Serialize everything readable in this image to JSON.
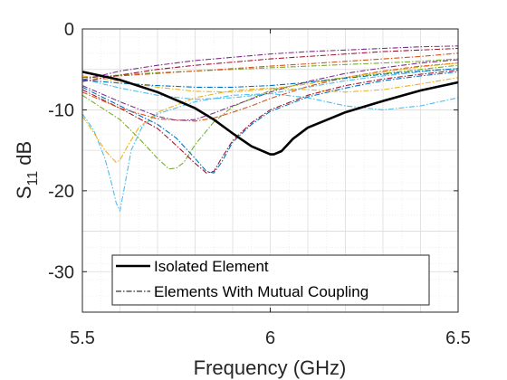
{
  "chart_data": {
    "type": "line",
    "title": "",
    "xlabel": "Frequency (GHz)",
    "ylabel_main": "S",
    "ylabel_sub": "11",
    "ylabel_unit": " dB",
    "xlim": [
      5.5,
      6.5
    ],
    "ylim": [
      -35,
      0
    ],
    "xticks": [
      "5.5",
      "6",
      "6.5"
    ],
    "yticks": [
      "0",
      "-10",
      "-20",
      "-30"
    ],
    "grid": true,
    "minor_grid": true,
    "legend_position": "bottom-right",
    "legend": [
      "Isolated Element",
      "Elements With Mutual Coupling"
    ],
    "series": [
      {
        "name": "Isolated Element",
        "color": "#000000",
        "style": "solid",
        "x": [
          5.5,
          5.6,
          5.7,
          5.8,
          5.85,
          5.9,
          5.95,
          6.0,
          6.01,
          6.03,
          6.06,
          6.1,
          6.2,
          6.3,
          6.4,
          6.5
        ],
        "y": [
          -5.3,
          -6.3,
          -7.8,
          -9.8,
          -11.2,
          -12.9,
          -14.5,
          -15.5,
          -15.5,
          -15.1,
          -13.6,
          -12.2,
          -10.3,
          -8.9,
          -7.6,
          -6.6
        ]
      },
      {
        "name": "Elements With Mutual Coupling",
        "color": "#4dbeee",
        "style": "dashdot",
        "x": [
          5.5,
          5.53,
          5.56,
          5.58,
          5.59,
          5.6,
          5.61,
          5.63,
          5.66,
          5.7,
          5.8,
          5.9,
          6.0,
          6.1,
          6.2,
          6.3,
          6.4,
          6.5
        ],
        "y": [
          -10.5,
          -12.5,
          -16,
          -19.5,
          -21.5,
          -22.5,
          -20,
          -15,
          -12,
          -10.5,
          -9,
          -8.2,
          -8,
          -8.5,
          -9.5,
          -10,
          -9.5,
          -8.5
        ]
      },
      {
        "color": "#edb120",
        "style": "dashdot",
        "x": [
          5.5,
          5.53,
          5.56,
          5.59,
          5.6,
          5.62,
          5.65,
          5.7,
          5.8,
          5.9,
          6.0,
          6.1,
          6.2,
          6.3,
          6.4,
          6.5
        ],
        "y": [
          -10.8,
          -12.8,
          -15,
          -16.5,
          -16.2,
          -14.5,
          -12.2,
          -10.3,
          -8.5,
          -7.6,
          -7.3,
          -7.5,
          -7.8,
          -7.5,
          -6.8,
          -6
        ]
      },
      {
        "color": "#77ac30",
        "style": "dashdot",
        "x": [
          5.5,
          5.6,
          5.65,
          5.7,
          5.73,
          5.75,
          5.77,
          5.8,
          5.85,
          5.9,
          6.0,
          6.1,
          6.2,
          6.3,
          6.4,
          6.5
        ],
        "y": [
          -8.2,
          -11.2,
          -13.5,
          -16,
          -17.3,
          -17.2,
          -16.5,
          -14.3,
          -11.5,
          -9.6,
          -7.6,
          -6.6,
          -6,
          -5.5,
          -5,
          -4.5
        ]
      },
      {
        "color": "#0072bd",
        "style": "dashdot",
        "x": [
          5.5,
          5.6,
          5.7,
          5.75,
          5.8,
          5.83,
          5.85,
          5.87,
          5.9,
          5.95,
          6.0,
          6.1,
          6.2,
          6.3,
          6.4,
          6.5
        ],
        "y": [
          -7.2,
          -9.5,
          -11.8,
          -13.5,
          -16,
          -17.6,
          -17.8,
          -16.5,
          -14,
          -11.8,
          -10.2,
          -8.4,
          -7.3,
          -6.4,
          -5.8,
          -5.3
        ]
      },
      {
        "color": "#a2142f",
        "style": "dashdot",
        "x": [
          5.5,
          5.6,
          5.7,
          5.75,
          5.8,
          5.83,
          5.85,
          5.87,
          5.9,
          5.95,
          6.0,
          6.1,
          6.2,
          6.3,
          6.4,
          6.5
        ],
        "y": [
          -7.5,
          -9.8,
          -12.3,
          -14.4,
          -16.6,
          -17.8,
          -17.6,
          -16,
          -13.8,
          -11.6,
          -10,
          -8.2,
          -7,
          -6.2,
          -5.6,
          -5.1
        ]
      },
      {
        "color": "#d95319",
        "style": "dashdot",
        "x": [
          5.5,
          5.6,
          5.7,
          5.8,
          5.85,
          5.9,
          5.95,
          6.0,
          6.1,
          6.2,
          6.3,
          6.4,
          6.5
        ],
        "y": [
          -7.8,
          -9.8,
          -11.1,
          -11.4,
          -11,
          -10.3,
          -9.5,
          -8.6,
          -7.1,
          -6,
          -5.2,
          -4.6,
          -4.2
        ]
      },
      {
        "color": "#7e2f8e",
        "style": "dashdot",
        "x": [
          5.5,
          5.6,
          5.7,
          5.75,
          5.8,
          5.85,
          5.9,
          6.0,
          6.1,
          6.2,
          6.3,
          6.4,
          6.5
        ],
        "y": [
          -7,
          -9,
          -10.8,
          -11.3,
          -11.2,
          -10.4,
          -9.5,
          -7.8,
          -6.5,
          -5.5,
          -4.8,
          -4.2,
          -3.8
        ]
      },
      {
        "color": "#4dbeee",
        "style": "dashdot",
        "x": [
          5.5,
          5.6,
          5.7,
          5.8,
          5.9,
          6.0,
          6.1,
          6.2,
          6.3,
          6.4,
          6.5
        ],
        "y": [
          -6.2,
          -7.3,
          -8.2,
          -8.7,
          -8.5,
          -8,
          -7.2,
          -6.4,
          -5.8,
          -5.3,
          -4.9
        ]
      },
      {
        "color": "#edb120",
        "style": "dashdot",
        "x": [
          5.5,
          5.6,
          5.7,
          5.8,
          5.9,
          6.0,
          6.1,
          6.2,
          6.3,
          6.4,
          6.5
        ],
        "y": [
          -5.8,
          -6.5,
          -7.2,
          -7.7,
          -7.8,
          -7.4,
          -6.8,
          -6,
          -5.3,
          -4.7,
          -4.2
        ]
      },
      {
        "color": "#0072bd",
        "style": "dashdot",
        "x": [
          5.5,
          5.6,
          5.7,
          5.8,
          5.9,
          6.0,
          6.1,
          6.2,
          6.3,
          6.4,
          6.5
        ],
        "y": [
          -6.3,
          -6.7,
          -7,
          -7.2,
          -7.2,
          -7,
          -6.6,
          -6.1,
          -5.6,
          -5.2,
          -4.9
        ]
      },
      {
        "color": "#77ac30",
        "style": "dashdot",
        "x": [
          5.5,
          5.6,
          5.7,
          5.8,
          5.9,
          6.0,
          6.1,
          6.2,
          6.3,
          6.4,
          6.5
        ],
        "y": [
          -6,
          -5.7,
          -5.4,
          -5.2,
          -5,
          -4.8,
          -4.6,
          -4.4,
          -4.2,
          -4,
          -3.7
        ]
      },
      {
        "color": "#d95319",
        "style": "dashdot",
        "x": [
          5.5,
          5.6,
          5.7,
          5.8,
          5.9,
          6.0,
          6.1,
          6.2,
          6.3,
          6.4,
          6.5
        ],
        "y": [
          -6,
          -5.8,
          -5.5,
          -5.2,
          -4.9,
          -4.6,
          -4.3,
          -4,
          -3.7,
          -3.4,
          -3
        ]
      },
      {
        "color": "#a2142f",
        "style": "dashdot",
        "x": [
          5.5,
          5.6,
          5.7,
          5.8,
          5.9,
          6.0,
          6.1,
          6.2,
          6.3,
          6.4,
          6.5
        ],
        "y": [
          -6.5,
          -5.7,
          -5,
          -4.5,
          -4.1,
          -3.7,
          -3.4,
          -3.1,
          -2.8,
          -2.6,
          -2.4
        ]
      },
      {
        "color": "#7e2f8e",
        "style": "dashdot",
        "x": [
          5.5,
          5.6,
          5.7,
          5.8,
          5.9,
          6.0,
          6.1,
          6.2,
          6.3,
          6.4,
          6.5
        ],
        "y": [
          -6.3,
          -5.2,
          -4.5,
          -3.9,
          -3.5,
          -3.1,
          -2.8,
          -2.6,
          -2.4,
          -2.2,
          -2.1
        ]
      }
    ]
  }
}
